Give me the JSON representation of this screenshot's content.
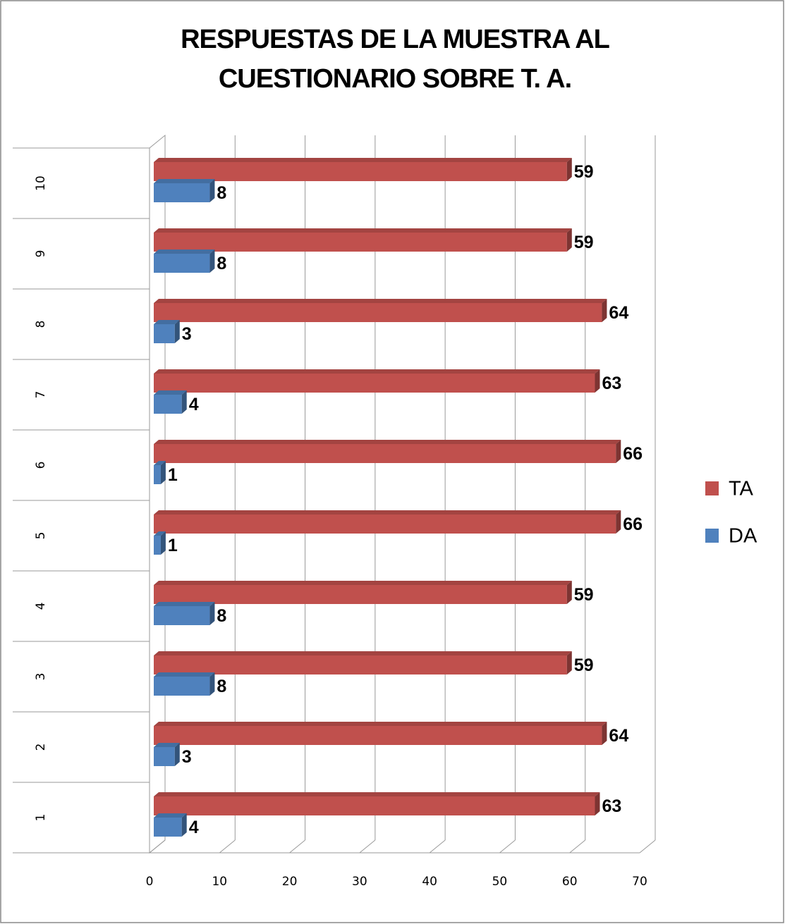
{
  "chart_data": {
    "type": "bar",
    "orientation": "horizontal",
    "title": "RESPUESTAS DE LA MUESTRA AL CUESTIONARIO SOBRE T. A.",
    "categories": [
      "1",
      "2",
      "3",
      "4",
      "5",
      "6",
      "7",
      "8",
      "9",
      "10"
    ],
    "series": [
      {
        "name": "TA",
        "color": "#c0504d",
        "values": [
          63,
          64,
          59,
          59,
          66,
          66,
          63,
          64,
          59,
          59
        ]
      },
      {
        "name": "DA",
        "color": "#4f81bd",
        "values": [
          4,
          3,
          8,
          8,
          1,
          1,
          4,
          3,
          8,
          8
        ]
      }
    ],
    "xlim": [
      0,
      70
    ],
    "xticks": [
      0,
      10,
      20,
      30,
      40,
      50,
      60,
      70
    ],
    "grid": true,
    "legend": "right"
  }
}
